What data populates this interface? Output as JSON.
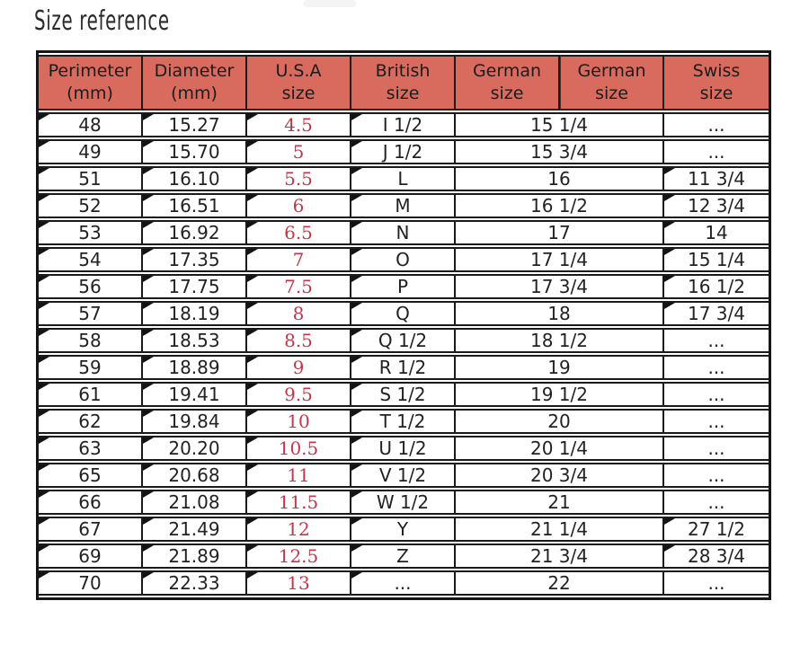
{
  "title": "Size reference",
  "colors": {
    "header_bg": "#d96a5e",
    "border": "#1a1a1a",
    "usa_value_red": "#c7354a",
    "text": "#222222"
  },
  "table": {
    "headers": [
      {
        "line1": "Perimeter",
        "line2": "(mm)"
      },
      {
        "line1": "Diameter",
        "line2": "(mm)"
      },
      {
        "line1": "U.S.A",
        "line2": "size"
      },
      {
        "line1": "British",
        "line2": "size"
      },
      {
        "line1": "German",
        "line2": "size"
      },
      {
        "line1": "German",
        "line2": "size"
      },
      {
        "line1": "Swiss",
        "line2": "size"
      }
    ],
    "rows": [
      {
        "perimeter": "48",
        "diameter": "15.27",
        "usa": "4.5",
        "british": "I 1/2",
        "german": "15 1/4",
        "swiss": "..."
      },
      {
        "perimeter": "49",
        "diameter": "15.70",
        "usa": "5",
        "british": "J 1/2",
        "german": "15 3/4",
        "swiss": "..."
      },
      {
        "perimeter": "51",
        "diameter": "16.10",
        "usa": "5.5",
        "british": "L",
        "german": "16",
        "swiss": "11 3/4"
      },
      {
        "perimeter": "52",
        "diameter": "16.51",
        "usa": "6",
        "british": "M",
        "german": "16 1/2",
        "swiss": "12 3/4"
      },
      {
        "perimeter": "53",
        "diameter": "16.92",
        "usa": "6.5",
        "british": "N",
        "german": "17",
        "swiss": "14"
      },
      {
        "perimeter": "54",
        "diameter": "17.35",
        "usa": "7",
        "british": "O",
        "german": "17 1/4",
        "swiss": "15 1/4"
      },
      {
        "perimeter": "56",
        "diameter": "17.75",
        "usa": "7.5",
        "british": "P",
        "german": "17 3/4",
        "swiss": "16 1/2"
      },
      {
        "perimeter": "57",
        "diameter": "18.19",
        "usa": "8",
        "british": "Q",
        "german": "18",
        "swiss": "17 3/4"
      },
      {
        "perimeter": "58",
        "diameter": "18.53",
        "usa": "8.5",
        "british": "Q 1/2",
        "german": "18 1/2",
        "swiss": "..."
      },
      {
        "perimeter": "59",
        "diameter": "18.89",
        "usa": "9",
        "british": "R 1/2",
        "german": "19",
        "swiss": "..."
      },
      {
        "perimeter": "61",
        "diameter": "19.41",
        "usa": "9.5",
        "british": "S 1/2",
        "german": "19 1/2",
        "swiss": "..."
      },
      {
        "perimeter": "62",
        "diameter": "19.84",
        "usa": "10",
        "british": "T 1/2",
        "german": "20",
        "swiss": "..."
      },
      {
        "perimeter": "63",
        "diameter": "20.20",
        "usa": "10.5",
        "british": "U 1/2",
        "german": "20 1/4",
        "swiss": "..."
      },
      {
        "perimeter": "65",
        "diameter": "20.68",
        "usa": "11",
        "british": "V 1/2",
        "german": "20 3/4",
        "swiss": "..."
      },
      {
        "perimeter": "66",
        "diameter": "21.08",
        "usa": "11.5",
        "british": "W 1/2",
        "german": "21",
        "swiss": "..."
      },
      {
        "perimeter": "67",
        "diameter": "21.49",
        "usa": "12",
        "british": "Y",
        "german": "21 1/4",
        "swiss": "27 1/2"
      },
      {
        "perimeter": "69",
        "diameter": "21.89",
        "usa": "12.5",
        "british": "Z",
        "german": "21 3/4",
        "swiss": "28 3/4"
      },
      {
        "perimeter": "70",
        "diameter": "22.33",
        "usa": "13",
        "british": "...",
        "german": "22",
        "swiss": "..."
      }
    ]
  }
}
